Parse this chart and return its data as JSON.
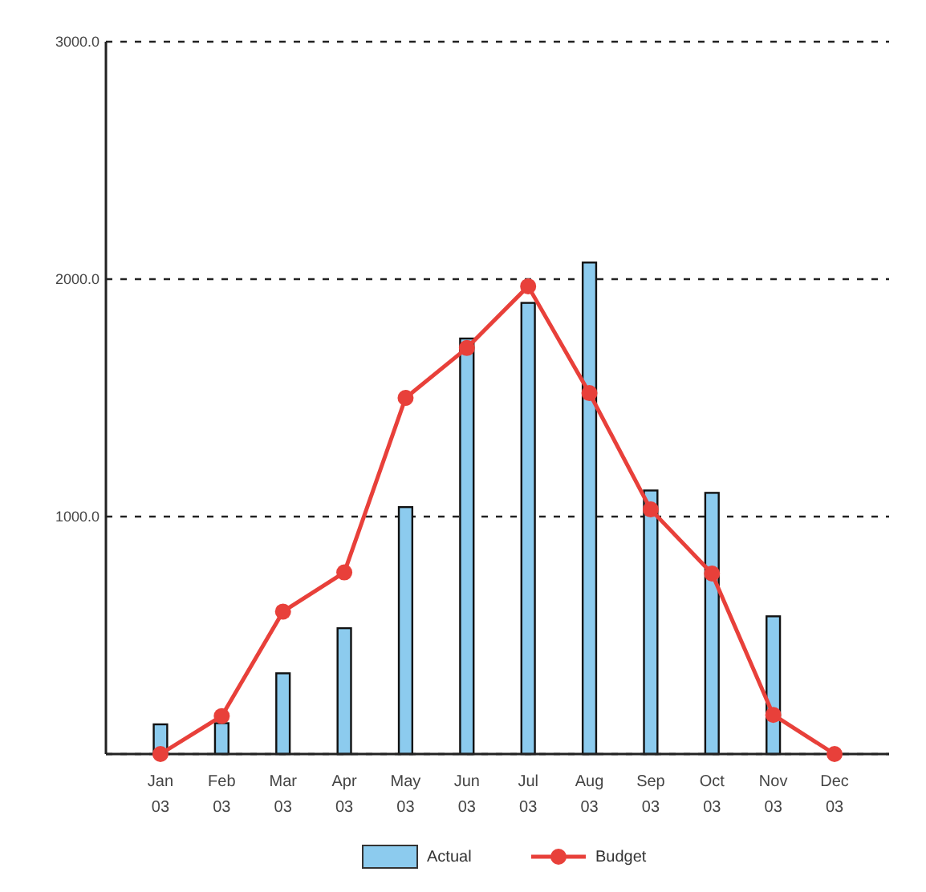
{
  "chart_data": {
    "type": "bar",
    "categories": [
      "Jan 03",
      "Feb 03",
      "Mar 03",
      "Apr 03",
      "May 03",
      "Jun 03",
      "Jul 03",
      "Aug 03",
      "Sep 03",
      "Oct 03",
      "Nov 03",
      "Dec 03"
    ],
    "series": [
      {
        "name": "Actual",
        "type": "bar",
        "color": "#8ccbee",
        "values": [
          125,
          130,
          340,
          530,
          1040,
          1750,
          1900,
          2070,
          1110,
          1100,
          580,
          0
        ]
      },
      {
        "name": "Budget",
        "type": "line",
        "color": "#e8403a",
        "marker": "circle",
        "values": [
          0,
          160,
          600,
          765,
          1500,
          1710,
          1970,
          1520,
          1030,
          760,
          165,
          0
        ]
      }
    ],
    "ylim": [
      0,
      3000
    ],
    "yticks": [
      {
        "value": 0,
        "label": null
      },
      {
        "value": 1000,
        "label": "1000.0"
      },
      {
        "value": 2000,
        "label": "2000.0"
      },
      {
        "value": 3000,
        "label": "3000.0"
      }
    ],
    "grid": "y",
    "legend": "bottom"
  }
}
